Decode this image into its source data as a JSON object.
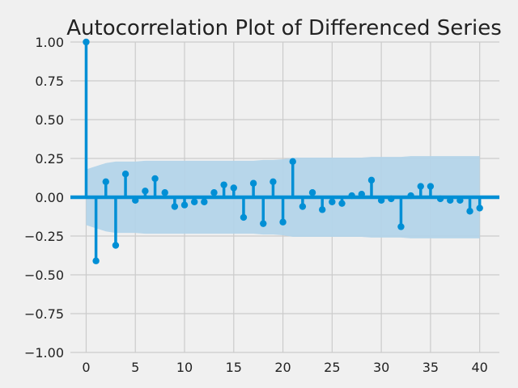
{
  "chart_data": {
    "type": "stem",
    "title": "Autocorrelation Plot of Differenced Series",
    "xlabel": "",
    "ylabel": "",
    "xlim": [
      -1.6,
      42
    ],
    "ylim": [
      -1.0,
      1.0
    ],
    "x_ticks": [
      0,
      5,
      10,
      15,
      20,
      25,
      30,
      35,
      40
    ],
    "y_ticks": [
      -1.0,
      -0.75,
      -0.5,
      -0.25,
      0.0,
      0.25,
      0.5,
      0.75,
      1.0
    ],
    "y_tick_labels": [
      "−1.00",
      "−0.75",
      "−0.50",
      "−0.25",
      "0.00",
      "0.25",
      "0.50",
      "0.75",
      "1.00"
    ],
    "x_tick_labels": [
      "0",
      "5",
      "10",
      "15",
      "20",
      "25",
      "30",
      "35",
      "40"
    ],
    "grid": true,
    "series": [
      {
        "lags": [
          0,
          1,
          2,
          3,
          4,
          5,
          6,
          7,
          8,
          9,
          10,
          11,
          12,
          13,
          14,
          15,
          16,
          17,
          18,
          19,
          20,
          21,
          22,
          23,
          24,
          25,
          26,
          27,
          28,
          29,
          30,
          31,
          32,
          33,
          34,
          35,
          36,
          37,
          38,
          39,
          40
        ],
        "values": [
          1.0,
          -0.41,
          0.1,
          -0.31,
          0.15,
          -0.02,
          0.04,
          0.12,
          0.03,
          -0.06,
          -0.05,
          -0.03,
          -0.03,
          0.03,
          0.08,
          0.06,
          -0.13,
          0.09,
          -0.17,
          0.1,
          -0.16,
          0.23,
          -0.06,
          0.03,
          -0.08,
          -0.03,
          -0.04,
          0.01,
          0.02,
          0.11,
          -0.02,
          -0.01,
          -0.19,
          0.01,
          0.07,
          0.07,
          -0.01,
          -0.02,
          -0.02,
          -0.09,
          -0.07
        ]
      }
    ],
    "confidence_band": {
      "lags": [
        0,
        1,
        2,
        3,
        4,
        5,
        6,
        7,
        8,
        9,
        10,
        11,
        12,
        13,
        14,
        15,
        16,
        17,
        18,
        19,
        20,
        21,
        22,
        23,
        24,
        25,
        26,
        27,
        28,
        29,
        30,
        31,
        32,
        33,
        34,
        35,
        36,
        37,
        38,
        39,
        40
      ],
      "upper": [
        0.18,
        0.2,
        0.22,
        0.23,
        0.23,
        0.23,
        0.235,
        0.235,
        0.235,
        0.235,
        0.235,
        0.235,
        0.235,
        0.235,
        0.235,
        0.235,
        0.235,
        0.235,
        0.24,
        0.24,
        0.245,
        0.255,
        0.255,
        0.255,
        0.255,
        0.255,
        0.255,
        0.255,
        0.255,
        0.26,
        0.26,
        0.26,
        0.26,
        0.265,
        0.265,
        0.265,
        0.265,
        0.265,
        0.265,
        0.265,
        0.265
      ]
    },
    "colors": {
      "stem": "#008fd5",
      "band": "#b3d4e9",
      "background": "#f0f0f0",
      "grid": "#cbcbcb"
    }
  }
}
